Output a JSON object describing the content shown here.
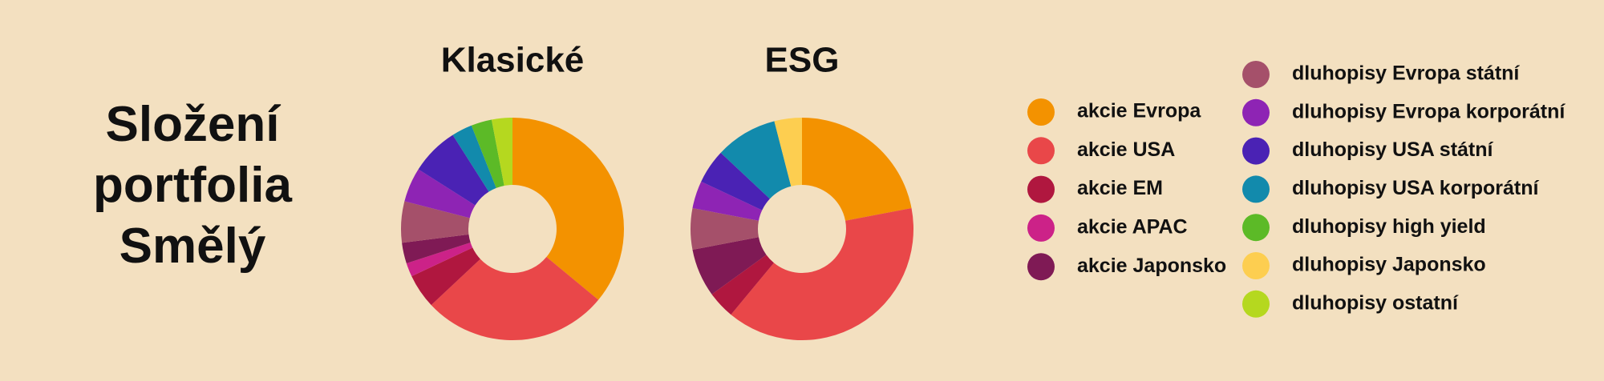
{
  "title": "Složení portfolia Smělý",
  "chart_data": [
    {
      "type": "donut",
      "title": "Klasické",
      "categories": [
        "akcie Evropa",
        "akcie USA",
        "akcie EM",
        "akcie APAC",
        "akcie Japonsko",
        "dluhopisy Evropa státní",
        "dluhopisy Evropa korporátní",
        "dluhopisy USA státní",
        "dluhopisy USA korporátní",
        "dluhopisy high yield",
        "dluhopisy Japonsko",
        "dluhopisy ostatní"
      ],
      "colors": [
        "#f39200",
        "#e94749",
        "#b0173f",
        "#cc2288",
        "#7f1a55",
        "#a5506a",
        "#8e24b4",
        "#4a22b4",
        "#128aac",
        "#5cba27",
        "#fdce50",
        "#b5d81f"
      ],
      "values": [
        36,
        27,
        5,
        2,
        3,
        6,
        5,
        7,
        3,
        3,
        0,
        3
      ]
    },
    {
      "type": "donut",
      "title": "ESG",
      "categories": [
        "akcie Evropa",
        "akcie USA",
        "akcie EM",
        "akcie APAC",
        "akcie Japonsko",
        "dluhopisy Evropa státní",
        "dluhopisy Evropa korporátní",
        "dluhopisy USA státní",
        "dluhopisy USA korporátní",
        "dluhopisy high yield",
        "dluhopisy Japonsko",
        "dluhopisy ostatní"
      ],
      "colors": [
        "#f39200",
        "#e94749",
        "#b0173f",
        "#cc2288",
        "#7f1a55",
        "#a5506a",
        "#8e24b4",
        "#4a22b4",
        "#128aac",
        "#5cba27",
        "#fdce50",
        "#b5d81f"
      ],
      "values": [
        22,
        39,
        4,
        0,
        7,
        6,
        4,
        5,
        9,
        0,
        4,
        0
      ]
    }
  ]
}
